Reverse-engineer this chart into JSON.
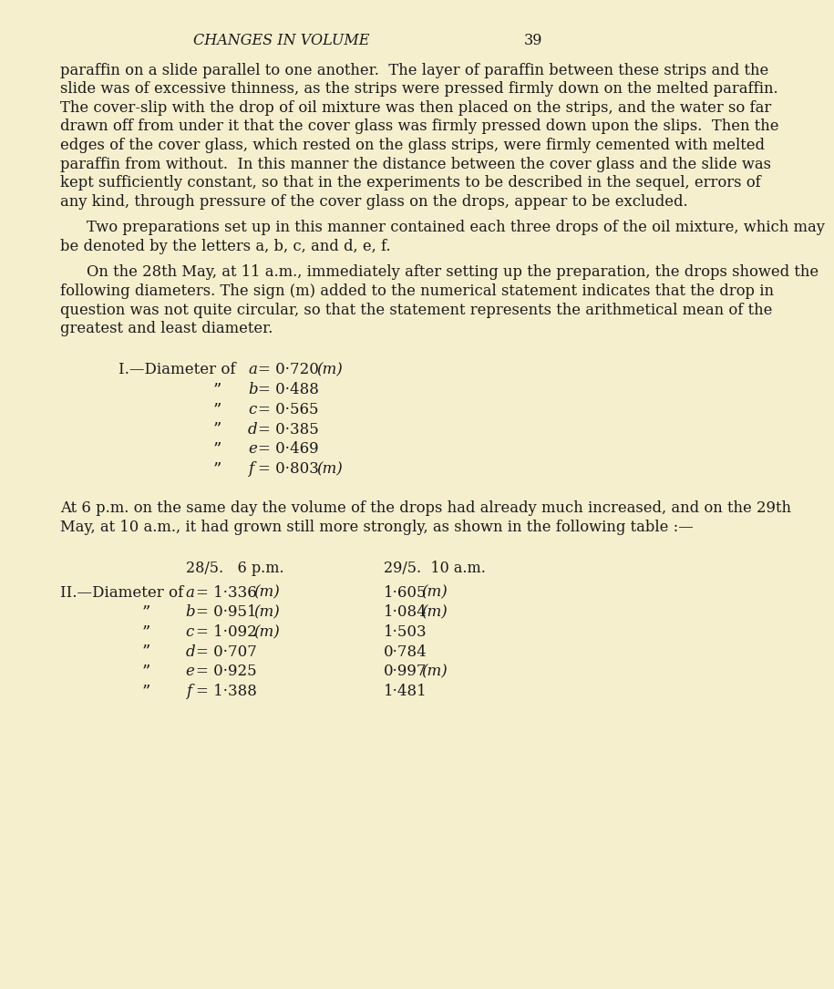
{
  "bg_color": "#f5efce",
  "text_color": "#1a1a1a",
  "page_number": "39",
  "chapter_title": "CHANGES IN VOLUME",
  "para1": "paraffin on a slide parallel to one another.  The layer of paraffin between these strips and the slide was of excessive thinness, as the strips were pressed firmly down on the melted paraffin.  The cover-slip with the drop of oil mixture was then placed on the strips, and the water so far drawn off from under it that the cover glass was firmly pressed down upon the slips.  Then the edges of the cover glass, which rested on the glass strips, were firmly cemented with melted paraffin from without.  In this manner the distance between the cover glass and the slide was kept sufficiently constant, so that in the experiments to be described in the sequel, errors of any kind, through pressure of the cover glass on the drops, appear to be excluded.",
  "para2": "Two preparations set up in this manner contained each three drops of the oil mixture, which may be denoted by the letters a, b, c, and d, e, f.",
  "para3": "On the 28th May, at 11 a.m., immediately after setting up the preparation, the drops showed the following diameters. The sign (m) added to the numerical statement indicates that the drop in question was not quite circular, so that the statement represents the arithmetical mean of the greatest and least diameter.",
  "section_I_rows": [
    {
      "var": "a",
      "value": "0·720",
      "note": "(m)",
      "first": true
    },
    {
      "var": "b",
      "value": "0·488",
      "note": "",
      "first": false
    },
    {
      "var": "c",
      "value": "0·565",
      "note": "",
      "first": false
    },
    {
      "var": "d",
      "value": "0·385",
      "note": "",
      "first": false
    },
    {
      "var": "e",
      "value": "0·469",
      "note": "",
      "first": false
    },
    {
      "var": "f",
      "value": "0·803",
      "note": "(m)",
      "first": false
    }
  ],
  "para_mid": "At 6 p.m. on the same day the volume of the drops had already much increased, and on the 29th May, at 10 a.m., it had grown still more strongly, as shown in the following table :—",
  "section_II_col1_header": "28/5.   6 p.m.",
  "section_II_col2_header": "29/5.  10 a.m.",
  "section_II_rows": [
    {
      "var": "a",
      "col1": "1·336",
      "col1_note": "(m)",
      "col2": "1·605",
      "col2_note": "(m)",
      "first": true
    },
    {
      "var": "b",
      "col1": "0·951",
      "col1_note": "(m)",
      "col2": "1·084",
      "col2_note": "(m)",
      "first": false
    },
    {
      "var": "c",
      "col1": "1·092",
      "col1_note": "(m)",
      "col2": "1·503",
      "col2_note": "",
      "first": false
    },
    {
      "var": "d",
      "col1": "0·707",
      "col1_note": "",
      "col2": "0·784",
      "col2_note": "",
      "first": false
    },
    {
      "var": "e",
      "col1": "0·925",
      "col1_note": "",
      "col2": "0·997",
      "col2_note": "(m)",
      "first": false
    },
    {
      "var": "f",
      "col1": "1·388",
      "col1_note": "",
      "col2": "1·481",
      "col2_note": "",
      "first": false
    }
  ]
}
